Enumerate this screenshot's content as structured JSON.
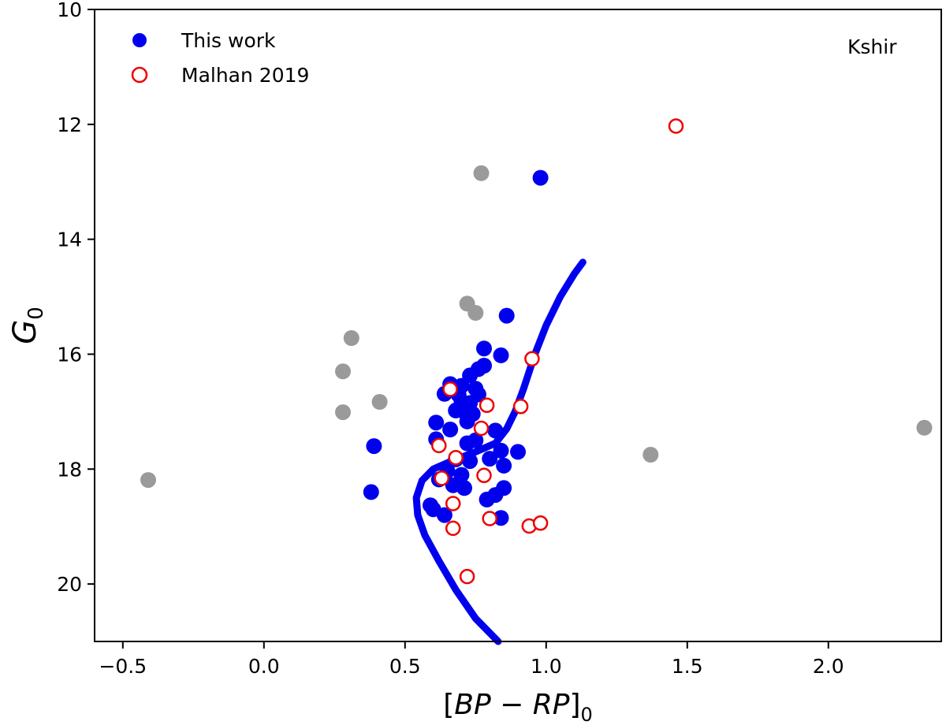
{
  "chart_data": {
    "type": "scatter",
    "title": "",
    "xlabel_parts": [
      "[",
      "BP",
      " − ",
      "RP",
      "]",
      "0"
    ],
    "ylabel_parts": [
      "G",
      "0"
    ],
    "xlim": [
      -0.6,
      2.4
    ],
    "ylim": [
      21.0,
      10.0
    ],
    "y_inverted": true,
    "x_ticks": [
      -0.5,
      0.0,
      0.5,
      1.0,
      1.5,
      2.0
    ],
    "x_tick_labels": [
      "−0.5",
      "0.0",
      "0.5",
      "1.0",
      "1.5",
      "2.0"
    ],
    "y_ticks": [
      10,
      12,
      14,
      16,
      18,
      20
    ],
    "y_tick_labels": [
      "10",
      "12",
      "14",
      "16",
      "18",
      "20"
    ],
    "grid": false,
    "legend_position": "top-left",
    "annotation": "Kshir",
    "colors": {
      "this_work": "#0000ee",
      "malhan": "#ee0000",
      "gray": "#9a9a9a",
      "isochrone": "#0000ee"
    },
    "series": [
      {
        "name": "This work",
        "marker": "filled-circle",
        "points": [
          [
            0.98,
            12.93
          ],
          [
            0.86,
            15.33
          ],
          [
            0.78,
            15.9
          ],
          [
            0.84,
            16.02
          ],
          [
            0.78,
            16.2
          ],
          [
            0.76,
            16.26
          ],
          [
            0.73,
            16.37
          ],
          [
            0.66,
            16.52
          ],
          [
            0.7,
            16.55
          ],
          [
            0.75,
            16.6
          ],
          [
            0.64,
            16.69
          ],
          [
            0.69,
            16.71
          ],
          [
            0.76,
            16.7
          ],
          [
            0.7,
            16.85
          ],
          [
            0.73,
            16.85
          ],
          [
            0.68,
            16.98
          ],
          [
            0.71,
            17.0
          ],
          [
            0.74,
            17.04
          ],
          [
            0.61,
            17.19
          ],
          [
            0.72,
            17.17
          ],
          [
            0.66,
            17.31
          ],
          [
            0.82,
            17.33
          ],
          [
            0.61,
            17.48
          ],
          [
            0.72,
            17.55
          ],
          [
            0.75,
            17.5
          ],
          [
            0.39,
            17.6
          ],
          [
            0.9,
            17.7
          ],
          [
            0.84,
            17.68
          ],
          [
            0.8,
            17.82
          ],
          [
            0.68,
            17.83
          ],
          [
            0.73,
            17.86
          ],
          [
            0.85,
            17.94
          ],
          [
            0.65,
            18.03
          ],
          [
            0.7,
            18.1
          ],
          [
            0.62,
            18.18
          ],
          [
            0.67,
            18.28
          ],
          [
            0.71,
            18.33
          ],
          [
            0.85,
            18.33
          ],
          [
            0.38,
            18.4
          ],
          [
            0.82,
            18.45
          ],
          [
            0.79,
            18.53
          ],
          [
            0.59,
            18.63
          ],
          [
            0.6,
            18.7
          ],
          [
            0.64,
            18.8
          ],
          [
            0.84,
            18.85
          ]
        ]
      },
      {
        "name": "Malhan 2019",
        "marker": "open-circle",
        "points": [
          [
            1.46,
            12.03
          ],
          [
            0.95,
            16.08
          ],
          [
            0.66,
            16.61
          ],
          [
            0.79,
            16.89
          ],
          [
            0.91,
            16.91
          ],
          [
            0.77,
            17.29
          ],
          [
            0.62,
            17.59
          ],
          [
            0.68,
            17.8
          ],
          [
            0.63,
            18.16
          ],
          [
            0.78,
            18.11
          ],
          [
            0.67,
            18.6
          ],
          [
            0.8,
            18.86
          ],
          [
            0.67,
            19.03
          ],
          [
            0.94,
            18.99
          ],
          [
            0.98,
            18.94
          ],
          [
            0.72,
            19.87
          ]
        ]
      },
      {
        "name": "",
        "marker": "filled-circle-gray",
        "points": [
          [
            0.77,
            12.85
          ],
          [
            0.72,
            15.12
          ],
          [
            0.75,
            15.28
          ],
          [
            0.31,
            15.72
          ],
          [
            0.28,
            16.3
          ],
          [
            0.41,
            16.83
          ],
          [
            0.28,
            17.01
          ],
          [
            2.34,
            17.28
          ],
          [
            1.37,
            17.75
          ],
          [
            -0.41,
            18.19
          ]
        ]
      }
    ],
    "isochrone": {
      "points": [
        [
          1.13,
          14.4
        ],
        [
          1.1,
          14.6
        ],
        [
          1.05,
          15.0
        ],
        [
          1.0,
          15.5
        ],
        [
          0.96,
          16.0
        ],
        [
          0.92,
          16.6
        ],
        [
          0.89,
          17.0
        ],
        [
          0.86,
          17.3
        ],
        [
          0.82,
          17.55
        ],
        [
          0.75,
          17.7
        ],
        [
          0.67,
          17.85
        ],
        [
          0.6,
          18.0
        ],
        [
          0.56,
          18.2
        ],
        [
          0.54,
          18.5
        ],
        [
          0.545,
          18.8
        ],
        [
          0.57,
          19.15
        ],
        [
          0.62,
          19.6
        ],
        [
          0.68,
          20.1
        ],
        [
          0.75,
          20.6
        ],
        [
          0.83,
          21.0
        ]
      ]
    }
  }
}
